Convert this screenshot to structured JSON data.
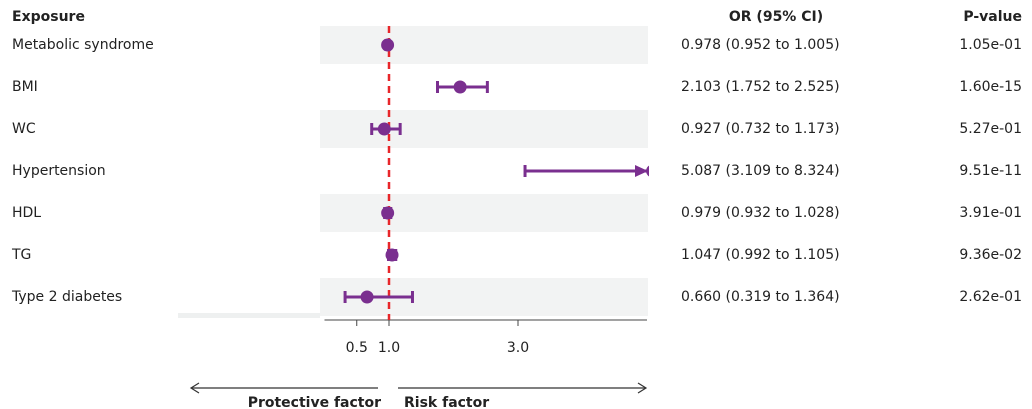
{
  "chart_data": {
    "type": "forest",
    "headers": {
      "exposure": "Exposure",
      "estimate": "OR (95% CI)",
      "p": "P-value"
    },
    "categories": [
      "Metabolic syndrome",
      "BMI",
      "WC",
      "Hypertension",
      "HDL",
      "TG",
      "Type 2 diabetes"
    ],
    "values": [
      0.978,
      2.103,
      0.927,
      5.087,
      0.979,
      1.047,
      0.66
    ],
    "lower": [
      0.952,
      1.752,
      0.732,
      3.109,
      0.932,
      0.992,
      0.319
    ],
    "upper": [
      1.005,
      2.525,
      1.173,
      8.324,
      1.028,
      1.105,
      1.364
    ],
    "value_labels": [
      "0.978 (0.952 to 1.005)",
      "2.103 (1.752 to 2.525)",
      "0.927 (0.732 to 1.173)",
      "5.087 (3.109 to 8.324)",
      "0.979 (0.932 to 1.028)",
      "1.047 (0.992 to 1.105)",
      "0.660 (0.319 to 1.364)"
    ],
    "p_values": [
      "1.05e-01",
      "1.60e-15",
      "5.27e-01",
      "9.51e-11",
      "3.91e-01",
      "9.36e-02",
      "2.62e-01"
    ],
    "color": "#7a2f8f",
    "ref_line": 1,
    "ref_color": "#e8262a",
    "xlim": [
      0,
      5
    ],
    "xticks": [
      0.5,
      {
        "value": 1,
        "label": "1.0"
      },
      {
        "value": 3,
        "label": "3.0"
      }
    ],
    "left_label": "Protective factor",
    "right_label": "Risk factor"
  }
}
